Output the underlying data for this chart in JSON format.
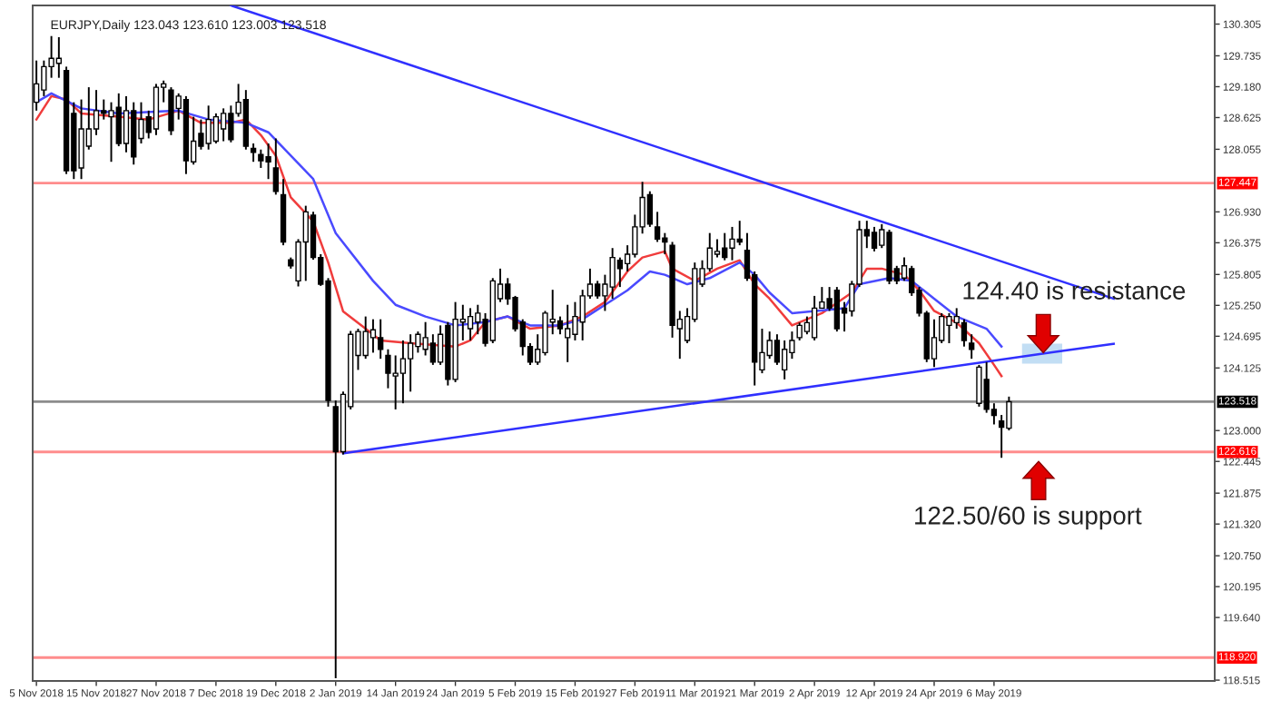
{
  "chart_data": {
    "type": "candlestick",
    "title": "EURJPY,Daily 123.043 123.610 123.003 123.518",
    "categories": [
      "5 Nov 2018",
      null,
      null,
      null,
      null,
      null,
      null,
      null,
      "15 Nov 2018",
      null,
      null,
      null,
      null,
      null,
      null,
      null,
      "27 Nov 2018",
      null,
      null,
      null,
      null,
      null,
      null,
      null,
      "7 Dec 2018",
      null,
      null,
      null,
      null,
      null,
      null,
      null,
      "19 Dec 2018",
      null,
      null,
      null,
      null,
      null,
      null,
      null,
      "2 Jan 2019",
      null,
      null,
      null,
      null,
      null,
      null,
      null,
      "14 Jan 2019",
      null,
      null,
      null,
      null,
      null,
      null,
      null,
      "24 Jan 2019",
      null,
      null,
      null,
      null,
      null,
      null,
      null,
      "5 Feb 2019",
      null,
      null,
      null,
      null,
      null,
      null,
      null,
      "15 Feb 2019",
      null,
      null,
      null,
      null,
      null,
      null,
      null,
      "27 Feb 2019",
      null,
      null,
      null,
      null,
      null,
      null,
      null,
      "11 Mar 2019",
      null,
      null,
      null,
      null,
      null,
      null,
      null,
      "21 Mar 2019",
      null,
      null,
      null,
      null,
      null,
      null,
      null,
      "2 Apr 2019",
      null,
      null,
      null,
      null,
      null,
      null,
      null,
      "12 Apr 2019",
      null,
      null,
      null,
      null,
      null,
      null,
      null,
      "24 Apr 2019",
      null,
      null,
      null,
      null,
      null,
      null,
      null,
      "6 May 2019",
      null,
      null,
      null,
      null,
      null,
      null,
      null,
      null,
      null,
      null,
      null,
      null,
      null,
      null,
      null,
      null,
      null,
      null,
      null,
      null,
      null,
      null,
      null,
      null,
      null,
      null,
      null,
      null,
      null
    ],
    "ohlc": [
      [
        128.9,
        129.65,
        128.75,
        129.23
      ],
      [
        129.12,
        129.65,
        129.01,
        129.54
      ],
      [
        129.54,
        130.09,
        129.34,
        129.69
      ],
      [
        129.6,
        130.07,
        129.34,
        129.69
      ],
      [
        129.47,
        129.54,
        127.61,
        127.67
      ],
      [
        128.7,
        128.9,
        127.52,
        127.67
      ],
      [
        127.72,
        128.95,
        127.52,
        128.42
      ],
      [
        128.11,
        129.17,
        128.05,
        128.42
      ],
      [
        128.42,
        129.12,
        128.31,
        128.75
      ],
      [
        128.75,
        128.95,
        128.59,
        128.7
      ],
      [
        128.64,
        128.9,
        127.83,
        128.75
      ],
      [
        128.81,
        129.06,
        128.11,
        128.16
      ],
      [
        128.16,
        129.01,
        128.0,
        128.75
      ],
      [
        128.75,
        128.9,
        127.78,
        127.92
      ],
      [
        128.25,
        128.9,
        128.16,
        128.59
      ],
      [
        128.64,
        128.75,
        128.25,
        128.36
      ],
      [
        128.42,
        129.23,
        128.31,
        129.17
      ],
      [
        129.17,
        129.29,
        128.9,
        129.23
      ],
      [
        129.12,
        129.17,
        128.31,
        128.39
      ],
      [
        128.79,
        129.06,
        128.59,
        129.01
      ],
      [
        128.95,
        129.01,
        127.61,
        127.85
      ],
      [
        127.83,
        128.64,
        127.78,
        128.2
      ],
      [
        128.34,
        128.59,
        128.05,
        128.11
      ],
      [
        128.16,
        128.84,
        128.05,
        128.59
      ],
      [
        128.2,
        128.7,
        128.16,
        128.64
      ],
      [
        128.42,
        128.79,
        128.2,
        128.7
      ],
      [
        128.7,
        128.84,
        128.18,
        128.23
      ],
      [
        128.7,
        129.23,
        128.64,
        128.9
      ],
      [
        128.95,
        129.12,
        128.05,
        128.11
      ],
      [
        128.07,
        128.16,
        127.83,
        128.0
      ],
      [
        127.96,
        128.05,
        127.72,
        127.85
      ],
      [
        127.92,
        128.16,
        127.52,
        127.83
      ],
      [
        127.72,
        128.25,
        127.24,
        127.3
      ],
      [
        127.24,
        127.52,
        126.33,
        126.39
      ],
      [
        126.07,
        126.11,
        125.91,
        125.96
      ],
      [
        125.69,
        126.44,
        125.59,
        126.39
      ],
      [
        126.39,
        127.04,
        125.69,
        126.93
      ],
      [
        126.87,
        126.93,
        126.07,
        126.11
      ],
      [
        126.11,
        126.17,
        125.6,
        125.63
      ],
      [
        125.69,
        125.74,
        123.43,
        123.54
      ],
      [
        123.43,
        123.54,
        118.55,
        122.62
      ],
      [
        122.62,
        123.7,
        122.57,
        123.65
      ],
      [
        123.43,
        124.79,
        123.38,
        124.73
      ],
      [
        124.35,
        124.83,
        124.09,
        124.78
      ],
      [
        124.35,
        125.05,
        124.29,
        124.78
      ],
      [
        124.67,
        125.0,
        124.4,
        124.81
      ],
      [
        124.67,
        125.0,
        124.29,
        124.46
      ],
      [
        124.35,
        124.46,
        123.76,
        124.03
      ],
      [
        123.98,
        124.35,
        123.38,
        124.03
      ],
      [
        124.03,
        124.62,
        123.49,
        124.29
      ],
      [
        124.29,
        124.73,
        123.7,
        124.57
      ],
      [
        124.51,
        124.78,
        124.4,
        124.73
      ],
      [
        124.46,
        124.95,
        124.35,
        124.67
      ],
      [
        124.57,
        124.73,
        124.18,
        124.23
      ],
      [
        124.23,
        124.89,
        124.18,
        124.73
      ],
      [
        124.89,
        124.95,
        123.81,
        123.92
      ],
      [
        123.92,
        125.31,
        123.87,
        125.0
      ],
      [
        124.95,
        125.26,
        124.62,
        125.0
      ],
      [
        124.83,
        125.2,
        124.62,
        125.05
      ],
      [
        124.95,
        125.26,
        124.73,
        125.11
      ],
      [
        125.0,
        125.11,
        124.51,
        124.57
      ],
      [
        124.62,
        125.74,
        124.57,
        125.69
      ],
      [
        125.37,
        125.91,
        125.31,
        125.63
      ],
      [
        125.63,
        125.74,
        125.26,
        125.37
      ],
      [
        125.39,
        125.42,
        124.78,
        124.83
      ],
      [
        124.95,
        125.0,
        124.35,
        124.51
      ],
      [
        124.51,
        124.57,
        124.18,
        124.23
      ],
      [
        124.23,
        124.73,
        124.18,
        124.46
      ],
      [
        124.4,
        125.15,
        124.35,
        125.11
      ],
      [
        124.95,
        125.53,
        124.73,
        125.0
      ],
      [
        124.97,
        125.05,
        124.73,
        124.83
      ],
      [
        124.67,
        125.26,
        124.23,
        124.83
      ],
      [
        124.73,
        125.31,
        124.62,
        125.05
      ],
      [
        124.95,
        125.53,
        124.62,
        125.42
      ],
      [
        125.42,
        125.91,
        125.37,
        125.63
      ],
      [
        125.63,
        125.69,
        125.37,
        125.42
      ],
      [
        125.42,
        125.8,
        125.15,
        125.63
      ],
      [
        125.58,
        126.28,
        125.37,
        126.11
      ],
      [
        126.06,
        126.11,
        125.58,
        125.91
      ],
      [
        126.0,
        126.33,
        125.86,
        126.17
      ],
      [
        126.17,
        126.88,
        126.11,
        126.66
      ],
      [
        126.66,
        127.47,
        126.54,
        127.19
      ],
      [
        127.24,
        127.3,
        126.66,
        126.71
      ],
      [
        126.66,
        126.93,
        126.39,
        126.44
      ],
      [
        126.46,
        126.55,
        126.17,
        126.39
      ],
      [
        126.33,
        126.39,
        124.67,
        124.89
      ],
      [
        124.83,
        125.15,
        124.29,
        125.0
      ],
      [
        124.62,
        125.2,
        124.57,
        125.05
      ],
      [
        125.0,
        126.02,
        124.95,
        125.91
      ],
      [
        125.63,
        126.06,
        125.58,
        125.91
      ],
      [
        125.91,
        126.55,
        125.86,
        126.28
      ],
      [
        126.17,
        126.44,
        126.11,
        126.22
      ],
      [
        126.28,
        126.55,
        126.06,
        126.11
      ],
      [
        126.28,
        126.66,
        126.06,
        126.44
      ],
      [
        126.44,
        126.77,
        126.33,
        126.39
      ],
      [
        126.24,
        126.55,
        125.69,
        125.74
      ],
      [
        125.8,
        125.86,
        123.81,
        124.23
      ],
      [
        124.09,
        124.83,
        124.03,
        124.4
      ],
      [
        124.35,
        124.78,
        124.29,
        124.62
      ],
      [
        124.62,
        124.73,
        124.18,
        124.23
      ],
      [
        124.09,
        124.62,
        123.92,
        124.46
      ],
      [
        124.4,
        124.78,
        124.29,
        124.62
      ],
      [
        124.67,
        124.94,
        124.62,
        124.89
      ],
      [
        124.78,
        125.05,
        124.73,
        124.94
      ],
      [
        124.67,
        125.42,
        124.62,
        125.2
      ],
      [
        125.2,
        125.58,
        125.2,
        125.31
      ],
      [
        125.37,
        125.58,
        125.15,
        125.2
      ],
      [
        125.52,
        125.58,
        124.78,
        124.83
      ],
      [
        125.2,
        125.31,
        124.78,
        125.11
      ],
      [
        125.15,
        125.69,
        125.05,
        125.63
      ],
      [
        125.63,
        126.77,
        125.58,
        126.61
      ],
      [
        126.61,
        126.77,
        126.28,
        126.5
      ],
      [
        126.56,
        126.66,
        126.22,
        126.28
      ],
      [
        126.33,
        126.71,
        126.28,
        126.61
      ],
      [
        126.56,
        126.61,
        125.63,
        125.69
      ],
      [
        125.91,
        125.96,
        125.63,
        125.69
      ],
      [
        125.74,
        126.11,
        125.69,
        125.96
      ],
      [
        125.91,
        125.96,
        125.42,
        125.48
      ],
      [
        125.52,
        125.58,
        125.05,
        125.11
      ],
      [
        125.11,
        125.15,
        124.23,
        124.29
      ],
      [
        124.29,
        125.0,
        124.14,
        124.67
      ],
      [
        124.62,
        125.11,
        124.57,
        125.05
      ],
      [
        124.89,
        125.11,
        124.57,
        125.05
      ],
      [
        124.94,
        125.2,
        124.83,
        125.05
      ],
      [
        124.94,
        125.0,
        124.51,
        124.62
      ],
      [
        124.57,
        124.73,
        124.29,
        124.46
      ],
      [
        123.49,
        124.18,
        123.43,
        124.14
      ],
      [
        123.92,
        124.23,
        123.32,
        123.38
      ],
      [
        123.38,
        123.49,
        123.11,
        123.27
      ],
      [
        123.17,
        123.28,
        122.51,
        123.06
      ],
      [
        123.043,
        123.61,
        123.003,
        123.518
      ],
      null,
      null,
      null,
      null,
      null,
      null,
      null,
      null,
      null,
      null,
      null,
      null,
      null,
      null,
      null,
      null,
      null,
      null,
      null,
      null,
      null,
      null,
      null,
      null,
      null,
      null,
      null
    ],
    "series": [
      {
        "type": "line",
        "color": "#f03c3c",
        "values": [
          128.59,
          null,
          129.01,
          null,
          128.95,
          null,
          128.7,
          null,
          null,
          null,
          null,
          128.64,
          null,
          null,
          null,
          128.59,
          null,
          null,
          null,
          128.75,
          null,
          null,
          128.53,
          null,
          null,
          null,
          128.53,
          null,
          128.59,
          null,
          128.31,
          null,
          127.94,
          null,
          127.19,
          null,
          null,
          126.76,
          null,
          126.02,
          null,
          125.14,
          null,
          null,
          124.83,
          null,
          124.62,
          null,
          null,
          null,
          124.57,
          null,
          null,
          null,
          null,
          null,
          124.51,
          null,
          124.62,
          null,
          124.95,
          null,
          null,
          125.05,
          null,
          null,
          124.83,
          null,
          null,
          null,
          124.89,
          null,
          null,
          125.05,
          null,
          null,
          125.31,
          null,
          null,
          125.86,
          null,
          126.11,
          null,
          null,
          126.22,
          125.91,
          null,
          null,
          125.69,
          null,
          null,
          125.91,
          null,
          null,
          126.06,
          null,
          125.63,
          null,
          125.37,
          null,
          null,
          124.89,
          null,
          null,
          null,
          125.11,
          null,
          null,
          null,
          125.48,
          null,
          125.91,
          null,
          125.91,
          null,
          null,
          125.8,
          null,
          125.52,
          null,
          125.15,
          null,
          null,
          124.94,
          null,
          null,
          124.57,
          null,
          124.18,
          123.98,
          null,
          null,
          null,
          null,
          null,
          null,
          null,
          null,
          null,
          null,
          null,
          null,
          null,
          null,
          null,
          null,
          null,
          null,
          null,
          null,
          null,
          null,
          null,
          null,
          null,
          null,
          null,
          null
        ]
      },
      {
        "type": "line",
        "color": "#4a4aff",
        "values": [
          128.9,
          null,
          129.06,
          null,
          null,
          null,
          128.79,
          null,
          null,
          null,
          null,
          128.7,
          null,
          null,
          null,
          null,
          null,
          null,
          null,
          128.75,
          null,
          null,
          null,
          128.59,
          null,
          null,
          null,
          null,
          128.53,
          null,
          null,
          128.36,
          null,
          null,
          127.94,
          null,
          null,
          127.52,
          null,
          null,
          126.55,
          null,
          null,
          null,
          null,
          125.69,
          null,
          null,
          125.26,
          null,
          null,
          null,
          125.05,
          null,
          null,
          null,
          124.89,
          null,
          null,
          null,
          124.95,
          null,
          null,
          125.05,
          null,
          null,
          124.89,
          null,
          null,
          null,
          124.89,
          null,
          null,
          125.0,
          null,
          null,
          125.26,
          null,
          null,
          125.52,
          null,
          null,
          125.86,
          null,
          125.8,
          null,
          null,
          125.63,
          null,
          null,
          125.74,
          null,
          null,
          null,
          126.02,
          null,
          125.8,
          null,
          125.48,
          null,
          null,
          125.11,
          null,
          null,
          null,
          null,
          null,
          null,
          125.2,
          null,
          125.63,
          null,
          null,
          null,
          125.74,
          null,
          null,
          125.69,
          null,
          null,
          125.37,
          null,
          null,
          125.05,
          null,
          null,
          null,
          124.83,
          null,
          124.51,
          null,
          null,
          null,
          null,
          null,
          null,
          null,
          null,
          null,
          null,
          null,
          null,
          null,
          null,
          null,
          null,
          null,
          null,
          null,
          null,
          null,
          null,
          null,
          null,
          null,
          null,
          null,
          null
        ]
      },
      {
        "type": "line",
        "color": "#3030ff",
        "values": [
          null,
          null,
          null,
          null,
          null,
          null,
          null,
          null,
          null,
          null,
          null,
          null,
          null,
          null,
          null,
          null,
          null,
          null,
          null,
          null,
          null,
          null,
          null,
          null,
          null,
          null,
          130.64,
          null,
          null,
          null,
          null,
          null,
          null,
          null,
          null,
          null,
          null,
          null,
          null,
          null,
          null,
          null,
          null,
          null,
          null,
          null,
          null,
          null,
          null,
          null,
          null,
          null,
          null,
          null,
          null,
          null,
          null,
          null,
          null,
          null,
          null,
          null,
          null,
          null,
          null,
          null,
          null,
          null,
          null,
          null,
          null,
          null,
          null,
          null,
          null,
          null,
          null,
          null,
          null,
          null,
          null,
          null,
          null,
          null,
          null,
          null,
          null,
          null,
          null,
          null,
          null,
          null,
          null,
          null,
          null,
          null,
          null,
          null,
          null,
          null,
          null,
          null,
          null,
          null,
          null,
          null,
          null,
          null,
          null,
          null,
          null,
          null,
          null,
          null,
          null,
          null,
          null,
          null,
          null,
          null,
          null,
          null,
          null,
          null,
          null,
          null,
          null,
          null,
          null,
          null,
          null,
          null,
          null,
          null,
          null,
          null,
          null,
          null,
          null,
          null,
          null,
          null,
          null,
          null,
          125.37,
          null,
          null,
          null,
          null,
          null,
          null,
          null,
          null,
          null,
          null,
          null,
          null,
          null
        ]
      },
      {
        "type": "line",
        "color": "#3030ff",
        "values": [
          null,
          null,
          null,
          null,
          null,
          null,
          null,
          null,
          null,
          null,
          null,
          null,
          null,
          null,
          null,
          null,
          null,
          null,
          null,
          null,
          null,
          null,
          null,
          null,
          null,
          null,
          null,
          null,
          null,
          null,
          null,
          null,
          null,
          null,
          null,
          null,
          null,
          null,
          null,
          null,
          null,
          122.59,
          null,
          null,
          null,
          null,
          null,
          null,
          null,
          null,
          null,
          null,
          null,
          null,
          null,
          null,
          null,
          null,
          null,
          null,
          null,
          null,
          null,
          null,
          null,
          null,
          null,
          null,
          null,
          null,
          null,
          null,
          null,
          null,
          null,
          null,
          null,
          null,
          null,
          null,
          null,
          null,
          null,
          null,
          null,
          null,
          null,
          null,
          null,
          null,
          null,
          null,
          null,
          null,
          null,
          null,
          null,
          null,
          null,
          null,
          null,
          null,
          null,
          null,
          null,
          null,
          null,
          null,
          null,
          null,
          null,
          null,
          null,
          null,
          null,
          null,
          null,
          null,
          null,
          null,
          null,
          null,
          null,
          null,
          null,
          null,
          null,
          null,
          null,
          null,
          null,
          null,
          null,
          null,
          null,
          null,
          124.41,
          null,
          null,
          null,
          null,
          null,
          null,
          null,
          124.56,
          null,
          null,
          null,
          null,
          null,
          null,
          null,
          null,
          null,
          null,
          null,
          null,
          null
        ]
      }
    ],
    "ylim": [
      118.5,
      130.64
    ],
    "yticks": [
      130.305,
      129.735,
      {
        "value": 129.18,
        "label": "129.180"
      },
      128.625,
      128.055,
      {
        "value": 126.93,
        "label": "126.930"
      },
      126.375,
      125.805,
      {
        "value": 125.25,
        "label": "125.250"
      },
      124.695,
      124.125,
      {
        "value": 123.0,
        "label": "123.000"
      },
      122.445,
      121.875,
      {
        "value": 121.32,
        "label": "121.320"
      },
      {
        "value": 120.75,
        "label": "120.750"
      },
      120.195,
      {
        "value": 119.64,
        "label": "119.640"
      },
      118.515
    ],
    "ref_lines": [
      {
        "axis": "y",
        "value": 127.447,
        "label": "127.447",
        "color": "#ff0000"
      },
      {
        "axis": "y",
        "value": 123.518,
        "label": "123.518",
        "color": "#000000"
      },
      {
        "axis": "y",
        "value": 122.616,
        "label": "122.616",
        "color": "#ff0000"
      },
      {
        "axis": "y",
        "value": 118.92,
        "label": "118.920",
        "color": "#ff0000"
      }
    ],
    "annotations": [
      {
        "text": "124.40 is resistance",
        "y": 124.4
      },
      "122.50/60 is support"
    ]
  }
}
